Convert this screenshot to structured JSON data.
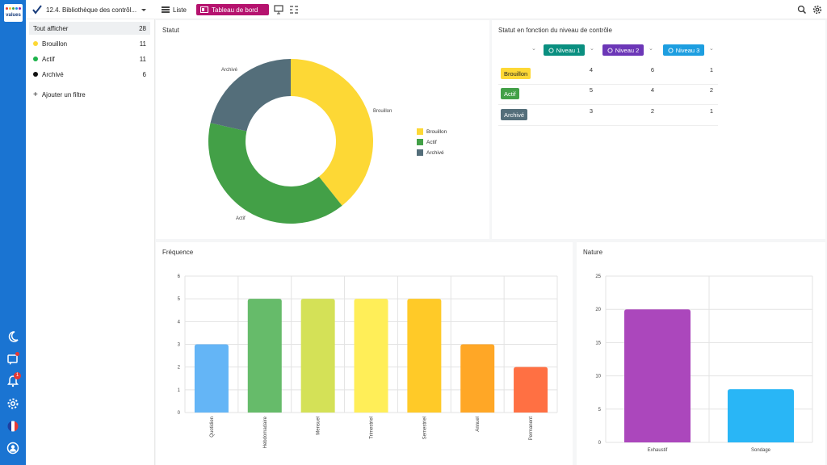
{
  "brand": {
    "logo_text": "values"
  },
  "breadcrumb": {
    "title": "12.4. Bibliothèque des contrôl..."
  },
  "views": {
    "list_label": "Liste",
    "dashboard_label": "Tableau de bord"
  },
  "filters": {
    "items": [
      {
        "label": "Tout afficher",
        "count": "28",
        "color": ""
      },
      {
        "label": "Brouillon",
        "count": "11",
        "color": "#fdd835"
      },
      {
        "label": "Actif",
        "count": "11",
        "color": "#1db34b"
      },
      {
        "label": "Archivé",
        "count": "6",
        "color": "#111111"
      }
    ],
    "add_label": "Ajouter un filtre"
  },
  "notifications": {
    "count": "1"
  },
  "status_panel": {
    "title": "Statut"
  },
  "level_panel": {
    "title": "Statut en fonction du niveau de contrôle",
    "levels": [
      {
        "label": "Niveau 1",
        "color": "#0a8f80"
      },
      {
        "label": "Niveau 2",
        "color": "#6c37b7"
      },
      {
        "label": "Niveau 3",
        "color": "#1d9ee0"
      }
    ],
    "rows": [
      {
        "label": "Brouillon",
        "color": "#fdd835",
        "text": "#222",
        "values": [
          "4",
          "6",
          "1"
        ]
      },
      {
        "label": "Actif",
        "color": "#43a047",
        "text": "#fff",
        "values": [
          "5",
          "4",
          "2"
        ]
      },
      {
        "label": "Archivé",
        "color": "#546e7a",
        "text": "#fff",
        "values": [
          "3",
          "2",
          "1"
        ]
      }
    ]
  },
  "freq_panel": {
    "title": "Fréquence"
  },
  "nature_panel": {
    "title": "Nature"
  },
  "chart_data": [
    {
      "type": "pie",
      "title": "Statut",
      "categories": [
        "Brouillon",
        "Actif",
        "Archivé"
      ],
      "values": [
        11,
        11,
        6
      ],
      "colors": [
        "#fdd835",
        "#43a047",
        "#546e7a"
      ],
      "legend": "right"
    },
    {
      "type": "bar",
      "title": "Fréquence",
      "categories": [
        "Quotidien",
        "Hebdomadaire",
        "Mensuel",
        "Trimestriel",
        "Semestriel",
        "Annuel",
        "Permanent"
      ],
      "values": [
        3,
        5,
        5,
        5,
        5,
        3,
        2
      ],
      "colors": [
        "#64b5f6",
        "#66bb6a",
        "#d4e157",
        "#ffee58",
        "#ffca28",
        "#ffa726",
        "#ff7043"
      ],
      "ylim": [
        0,
        6
      ],
      "yticks": [
        "0",
        "1",
        "2",
        "3",
        "4",
        "5",
        "6"
      ]
    },
    {
      "type": "bar",
      "title": "Nature",
      "categories": [
        "Exhaustif",
        "Sondage"
      ],
      "values": [
        20,
        8
      ],
      "colors": [
        "#ab47bc",
        "#29b6f6"
      ],
      "ylim": [
        0,
        25
      ],
      "yticks": [
        "0",
        "5",
        "10",
        "15",
        "20",
        "25"
      ]
    }
  ]
}
